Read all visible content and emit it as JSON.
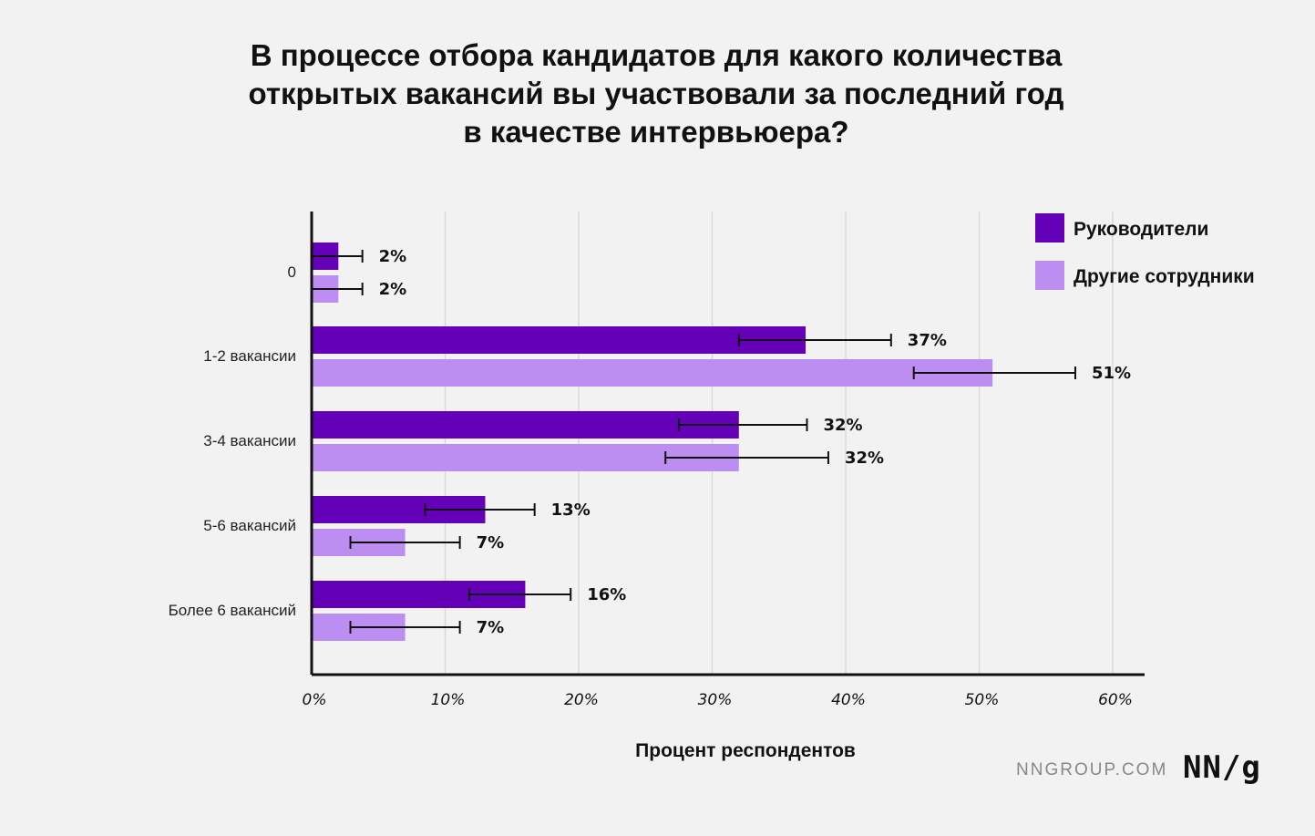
{
  "title_lines": [
    "В процессе отбора кандидатов для какого количества",
    "открытых вакансий вы участвовали за последний год",
    "в качестве интервьюера?"
  ],
  "footer": {
    "site": "NNGROUP.COM",
    "logo": "NN/g"
  },
  "colors": {
    "series1": "#6400b8",
    "series2": "#bd8ef2",
    "grid": "#d9d9d9",
    "axis": "#111111",
    "background": "#f2f2f2"
  },
  "chart_data": {
    "type": "bar",
    "orientation": "horizontal",
    "categories": [
      "0",
      "1-2 вакансии",
      "3-4 вакансии",
      "5-6 вакансий",
      "Более 6 вакансий"
    ],
    "series": [
      {
        "name": "Руководители",
        "values": [
          2,
          37,
          32,
          13,
          16
        ],
        "labels": [
          "2%",
          "37%",
          "32%",
          "13%",
          "16%"
        ],
        "error_low": [
          0,
          32,
          27.5,
          8.5,
          11.8
        ],
        "error_high": [
          3.8,
          43.4,
          37.1,
          16.7,
          19.4
        ]
      },
      {
        "name": "Другие сотрудники",
        "values": [
          2,
          51,
          32,
          7,
          7
        ],
        "labels": [
          "2%",
          "51%",
          "32%",
          "7%",
          "7%"
        ],
        "error_low": [
          0,
          45.1,
          26.5,
          2.9,
          2.9
        ],
        "error_high": [
          3.8,
          57.2,
          38.7,
          11.1,
          11.1
        ]
      }
    ],
    "xlim": [
      0,
      60
    ],
    "xticks": [
      "0%",
      "10%",
      "20%",
      "30%",
      "40%",
      "50%",
      "60%"
    ],
    "xlabel": "Процент респондентов",
    "ylabel": "",
    "grid": "vertical",
    "legend": "top-right"
  }
}
